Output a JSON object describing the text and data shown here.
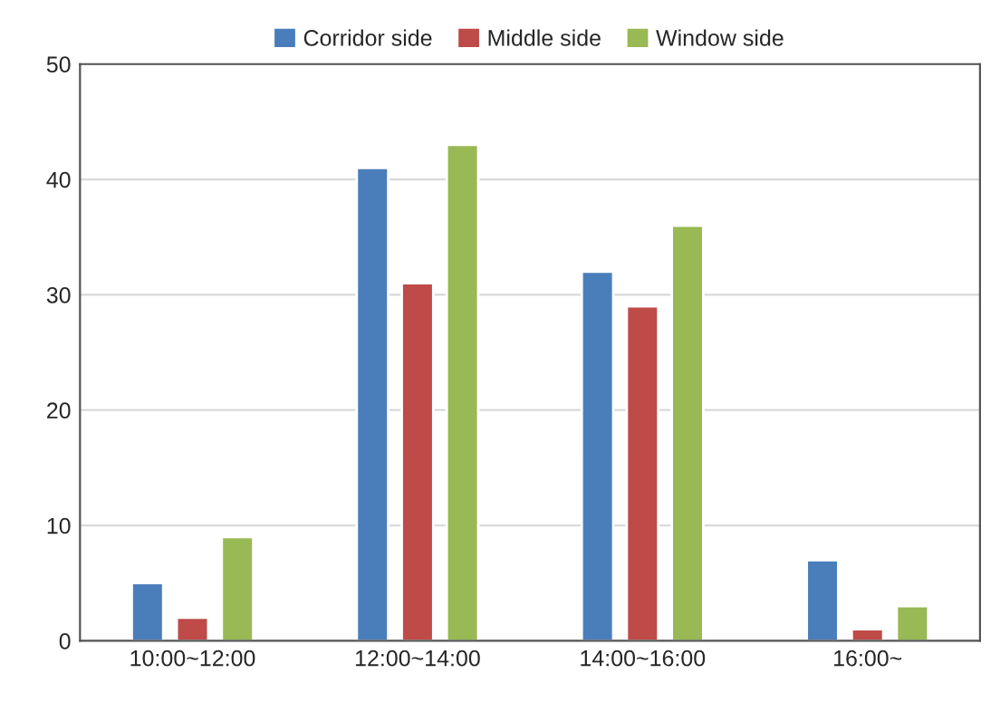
{
  "chart_data": {
    "type": "bar",
    "categories": [
      "10:00~12:00",
      "12:00~14:00",
      "14:00~16:00",
      "16:00~"
    ],
    "series": [
      {
        "name": "Corridor side",
        "color": "#4a7ebb",
        "values": [
          5,
          41,
          32,
          7
        ]
      },
      {
        "name": "Middle side",
        "color": "#be4b48",
        "values": [
          2,
          31,
          29,
          1
        ]
      },
      {
        "name": "Window side",
        "color": "#98b954",
        "values": [
          9,
          43,
          36,
          3
        ]
      }
    ],
    "ylim": [
      0,
      50
    ],
    "yticks": [
      0,
      10,
      20,
      30,
      40,
      50
    ],
    "grid": "y",
    "legend": "top"
  }
}
